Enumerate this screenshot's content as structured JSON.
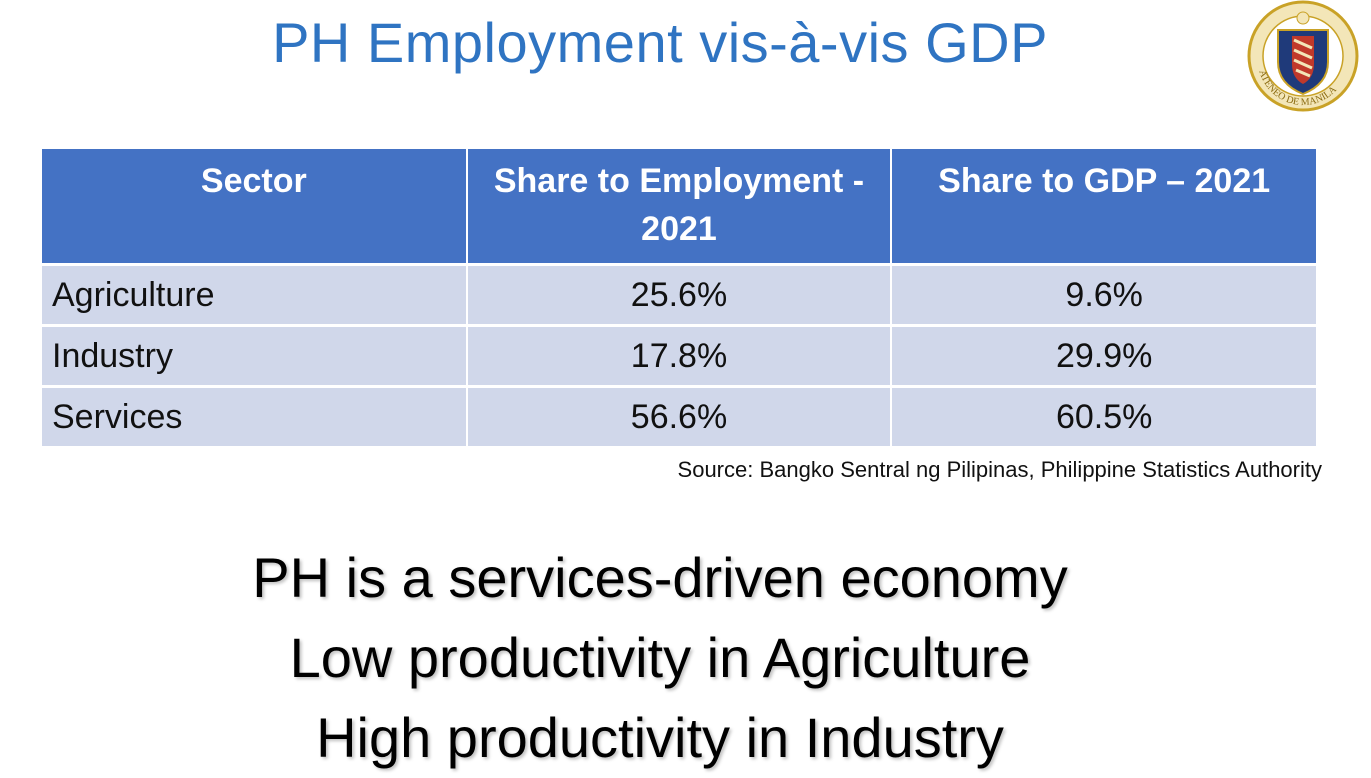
{
  "slide": {
    "title": "PH Employment vis-à-vis GDP",
    "logo": {
      "name": "ateneo-de-manila-seal",
      "text": "ATENEO DE MANILA",
      "colors": {
        "gold": "#c9a227",
        "navy": "#1f3a7a",
        "red": "#c0392b"
      }
    }
  },
  "table": {
    "headers": [
      "Sector",
      "Share to Employment - 2021",
      "Share to GDP – 2021"
    ],
    "rows": [
      {
        "sector": "Agriculture",
        "employment": "25.6%",
        "gdp": "9.6%"
      },
      {
        "sector": "Industry",
        "employment": "17.8%",
        "gdp": "29.9%"
      },
      {
        "sector": "Services",
        "employment": "56.6%",
        "gdp": "60.5%"
      }
    ],
    "colors": {
      "header_bg": "#4472c4",
      "row_bg": "#d0d7ea"
    }
  },
  "source": "Source: Bangko Sentral ng Pilipinas, Philippine Statistics Authority",
  "takeaways": [
    "PH is a services-driven economy",
    "Low productivity in Agriculture",
    "High productivity in Industry"
  ]
}
